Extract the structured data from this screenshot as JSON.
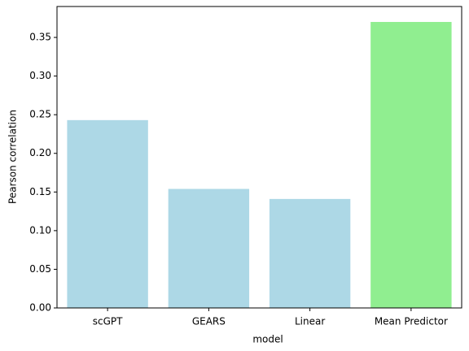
{
  "chart_data": {
    "type": "bar",
    "x_label": "model",
    "y_label": "Pearson correlation",
    "categories": [
      "scGPT",
      "GEARS",
      "Linear",
      "Mean Predictor"
    ],
    "values": [
      0.243,
      0.154,
      0.141,
      0.37
    ],
    "colors": [
      "#add8e6",
      "#add8e6",
      "#add8e6",
      "#90ee90"
    ],
    "ylim": [
      0,
      0.39
    ],
    "yticks": [
      {
        "value": 0,
        "label": "0.00"
      },
      0.05,
      {
        "value": 0.1,
        "label": "0.10"
      },
      0.15,
      {
        "value": 0.2,
        "label": "0.20"
      },
      0.25,
      {
        "value": 0.3,
        "label": "0.30"
      },
      0.35
    ]
  }
}
